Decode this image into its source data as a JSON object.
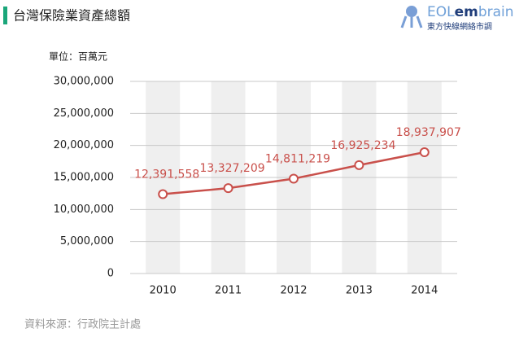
{
  "header": {
    "title": "台灣保險業資產總額"
  },
  "logo": {
    "parts": [
      "EOL",
      "em",
      "brain"
    ],
    "tagline": "東方快線網絡市調"
  },
  "chart_data": {
    "type": "line",
    "unit_label": "單位：百萬元",
    "categories": [
      "2010",
      "2011",
      "2012",
      "2013",
      "2014"
    ],
    "series": [
      {
        "color": "#c9504b",
        "values": [
          12391558,
          13327209,
          14811219,
          16925234,
          18937907
        ],
        "value_labels": [
          "12,391,558",
          "13,327,209",
          "14,811,219",
          "16,925,234",
          "18,937,907"
        ]
      }
    ],
    "ylim": [
      0,
      30000000
    ],
    "yticks": [
      0,
      {
        "value": 5000000,
        "label": "5,000,000"
      },
      {
        "value": 10000000,
        "label": "10,000,000"
      },
      {
        "value": 15000000,
        "label": "15,000,000"
      },
      {
        "value": 20000000,
        "label": "20,000,000"
      },
      {
        "value": 25000000,
        "label": "25,000,000"
      },
      {
        "value": 30000000,
        "label": "30,000,000"
      }
    ],
    "grid": true
  },
  "source": "資料來源：行政院主計處"
}
